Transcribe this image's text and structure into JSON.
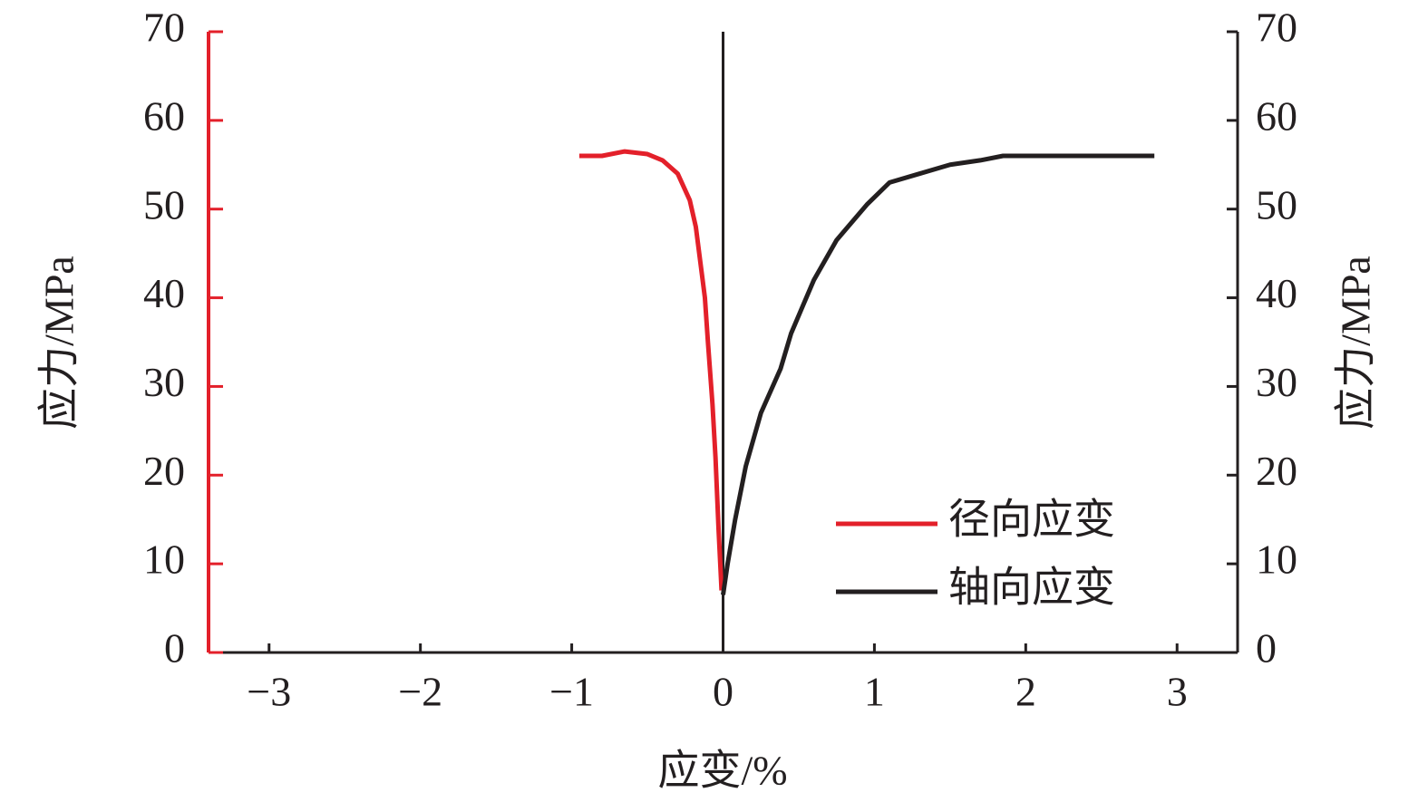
{
  "chart_data": {
    "type": "line",
    "xlabel": "应变/%",
    "ylabel": "应力/MPa",
    "y2label": "应力/MPa",
    "xlim": [
      -3.4,
      3.4
    ],
    "xticks": [
      {
        "value": -3,
        "label": "−3"
      },
      {
        "value": -2,
        "label": "−2"
      },
      {
        "value": -1,
        "label": "−1"
      },
      0,
      1,
      2,
      3
    ],
    "ylim": [
      0,
      70
    ],
    "yticks": [
      0,
      10,
      20,
      30,
      40,
      50,
      60,
      70
    ],
    "y_axis_color": "#e3202a",
    "y2lim": [
      0,
      70
    ],
    "y2ticks": [
      0,
      10,
      20,
      30,
      40,
      50,
      60,
      70
    ],
    "y2_axis_color": "#231f20",
    "legend": "lower right",
    "series": [
      {
        "name": "径向应变",
        "color": "#e3202a",
        "axis": "y",
        "x": [
          -0.95,
          -0.8,
          -0.65,
          -0.5,
          -0.4,
          -0.3,
          -0.22,
          -0.18,
          -0.15,
          -0.12,
          -0.1,
          -0.07,
          -0.05,
          -0.03,
          -0.01
        ],
        "values": [
          56,
          56,
          56.5,
          56.2,
          55.5,
          54,
          51,
          48,
          44,
          40,
          35,
          28,
          22,
          14,
          7
        ]
      },
      {
        "name": "轴向应变",
        "color": "#231f20",
        "axis": "y2",
        "x": [
          0,
          0.03,
          0.08,
          0.15,
          0.25,
          0.38,
          0.45,
          0.6,
          0.75,
          0.95,
          1.1,
          1.3,
          1.5,
          1.7,
          1.85,
          2.85
        ],
        "values": [
          6.5,
          10,
          15,
          21,
          27,
          32,
          36,
          42,
          46.5,
          50.5,
          53,
          54,
          55,
          55.5,
          56,
          56
        ]
      }
    ]
  }
}
